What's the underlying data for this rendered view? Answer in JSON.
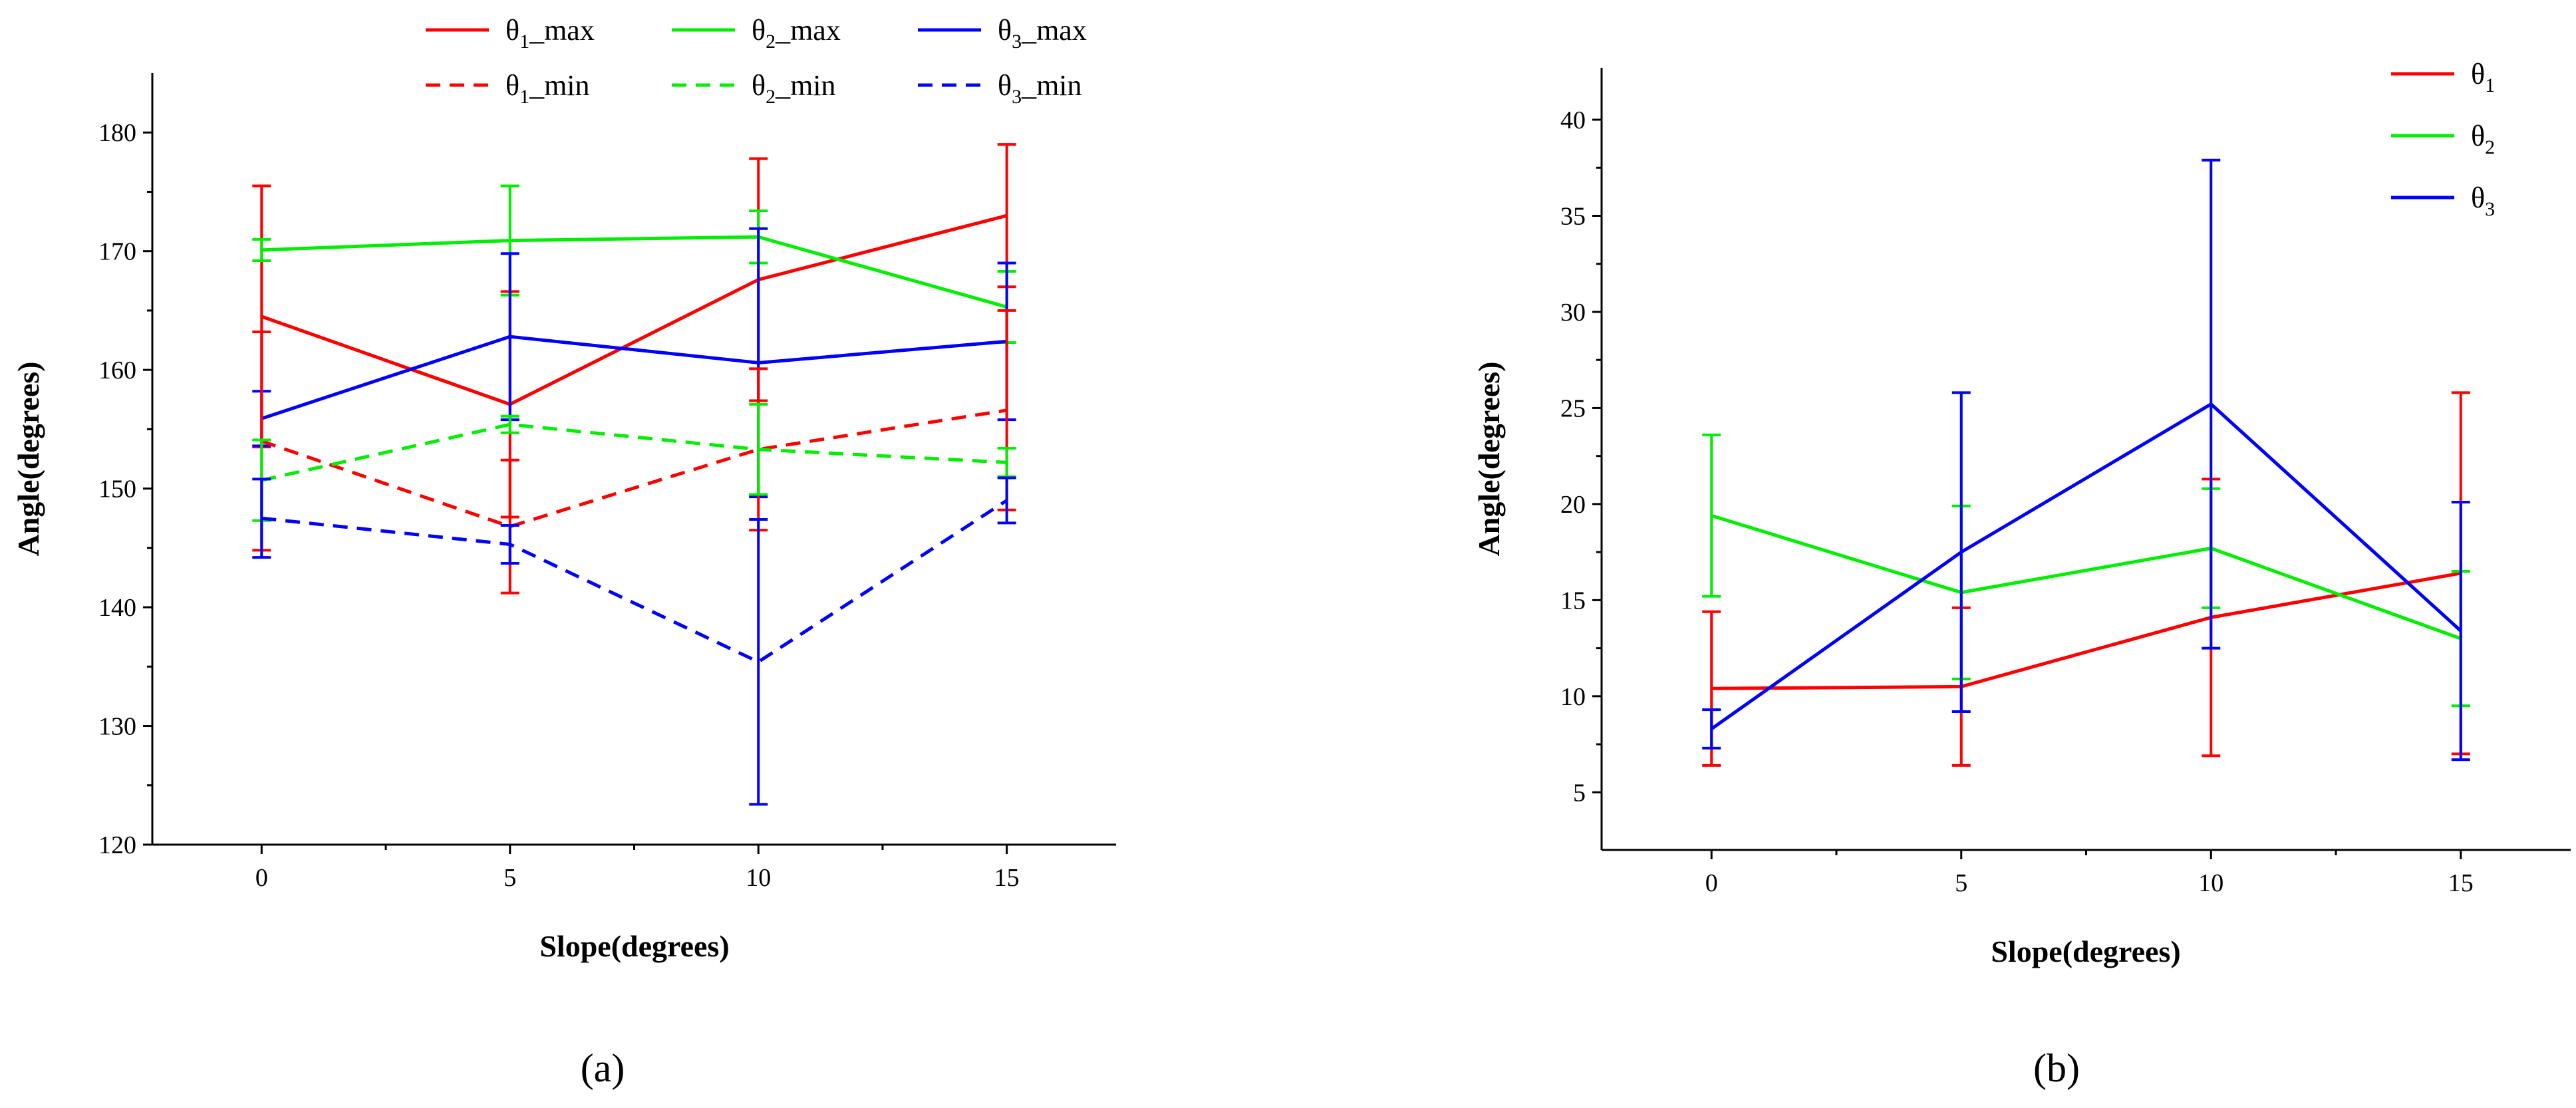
{
  "chart_data": [
    {
      "type": "line",
      "panel_label": "(a)",
      "xlabel": "Slope(degrees)",
      "ylabel": "Angle(degrees)",
      "x": [
        0,
        5,
        10,
        15
      ],
      "x_ticks": [
        "0",
        "5",
        "10",
        "15"
      ],
      "xlim": [
        -2.2,
        17.2
      ],
      "ylim": [
        120,
        185
      ],
      "y_ticks": [
        "120",
        "130",
        "140",
        "150",
        "160",
        "170",
        "180"
      ],
      "legend_position": "top",
      "series": [
        {
          "name": "θ1_max",
          "label": "θ",
          "sub": "1",
          "suffix": "_max",
          "color": "#ff0000",
          "dash": "solid",
          "values": [
            164.5,
            157.1,
            167.6,
            173.0
          ],
          "error": [
            11.0,
            9.5,
            10.2,
            6.0
          ]
        },
        {
          "name": "θ2_max",
          "label": "θ",
          "sub": "2",
          "suffix": "_max",
          "color": "#00ee00",
          "dash": "solid",
          "values": [
            170.1,
            170.9,
            171.2,
            165.3
          ],
          "error": [
            0.9,
            4.6,
            2.2,
            3.0
          ]
        },
        {
          "name": "θ3_max",
          "label": "θ",
          "sub": "3",
          "suffix": "_max",
          "color": "#0000ff",
          "dash": "solid",
          "values": [
            155.9,
            162.8,
            160.6,
            162.4
          ],
          "error": [
            2.3,
            7.0,
            11.3,
            6.6
          ]
        },
        {
          "name": "θ1_min",
          "label": "θ",
          "sub": "1",
          "suffix": "_min",
          "color": "#ff0000",
          "dash": "dashed",
          "values": [
            154.0,
            146.8,
            153.3,
            156.6
          ],
          "error": [
            9.2,
            5.6,
            6.8,
            8.4
          ]
        },
        {
          "name": "θ2_min",
          "label": "θ",
          "sub": "2",
          "suffix": "_min",
          "color": "#00ee00",
          "dash": "dashed",
          "values": [
            150.7,
            155.4,
            153.3,
            152.2
          ],
          "error": [
            3.4,
            0.7,
            3.8,
            1.2
          ]
        },
        {
          "name": "θ3_min",
          "label": "θ",
          "sub": "3",
          "suffix": "_min",
          "color": "#0000ff",
          "dash": "dashed",
          "values": [
            147.5,
            145.3,
            135.4,
            149.0
          ],
          "error": [
            3.3,
            1.6,
            12.0,
            1.9
          ]
        }
      ]
    },
    {
      "type": "line",
      "panel_label": "(b)",
      "xlabel": "Slope(degrees)",
      "ylabel": "Angle(degrees)",
      "x": [
        0,
        5,
        10,
        15
      ],
      "x_ticks": [
        "0",
        "5",
        "10",
        "15"
      ],
      "xlim": [
        -2.2,
        17.2
      ],
      "ylim": [
        2,
        42.7
      ],
      "y_ticks": [
        "5",
        "10",
        "15",
        "20",
        "25",
        "30",
        "35",
        "40"
      ],
      "legend_position": "top-right",
      "series": [
        {
          "name": "θ1",
          "label": "θ",
          "sub": "1",
          "suffix": "",
          "color": "#ff0000",
          "dash": "solid",
          "values": [
            10.4,
            10.5,
            14.1,
            16.4
          ],
          "error": [
            4.0,
            4.1,
            7.2,
            9.4
          ]
        },
        {
          "name": "θ2",
          "label": "θ",
          "sub": "2",
          "suffix": "",
          "color": "#00ee00",
          "dash": "solid",
          "values": [
            19.4,
            15.4,
            17.7,
            13.0
          ],
          "error": [
            4.2,
            4.5,
            3.1,
            3.5
          ]
        },
        {
          "name": "θ3",
          "label": "θ",
          "sub": "3",
          "suffix": "",
          "color": "#0000ff",
          "dash": "solid",
          "values": [
            8.3,
            17.5,
            25.2,
            13.4
          ],
          "error": [
            1.0,
            8.3,
            12.7,
            6.7
          ]
        }
      ]
    }
  ]
}
